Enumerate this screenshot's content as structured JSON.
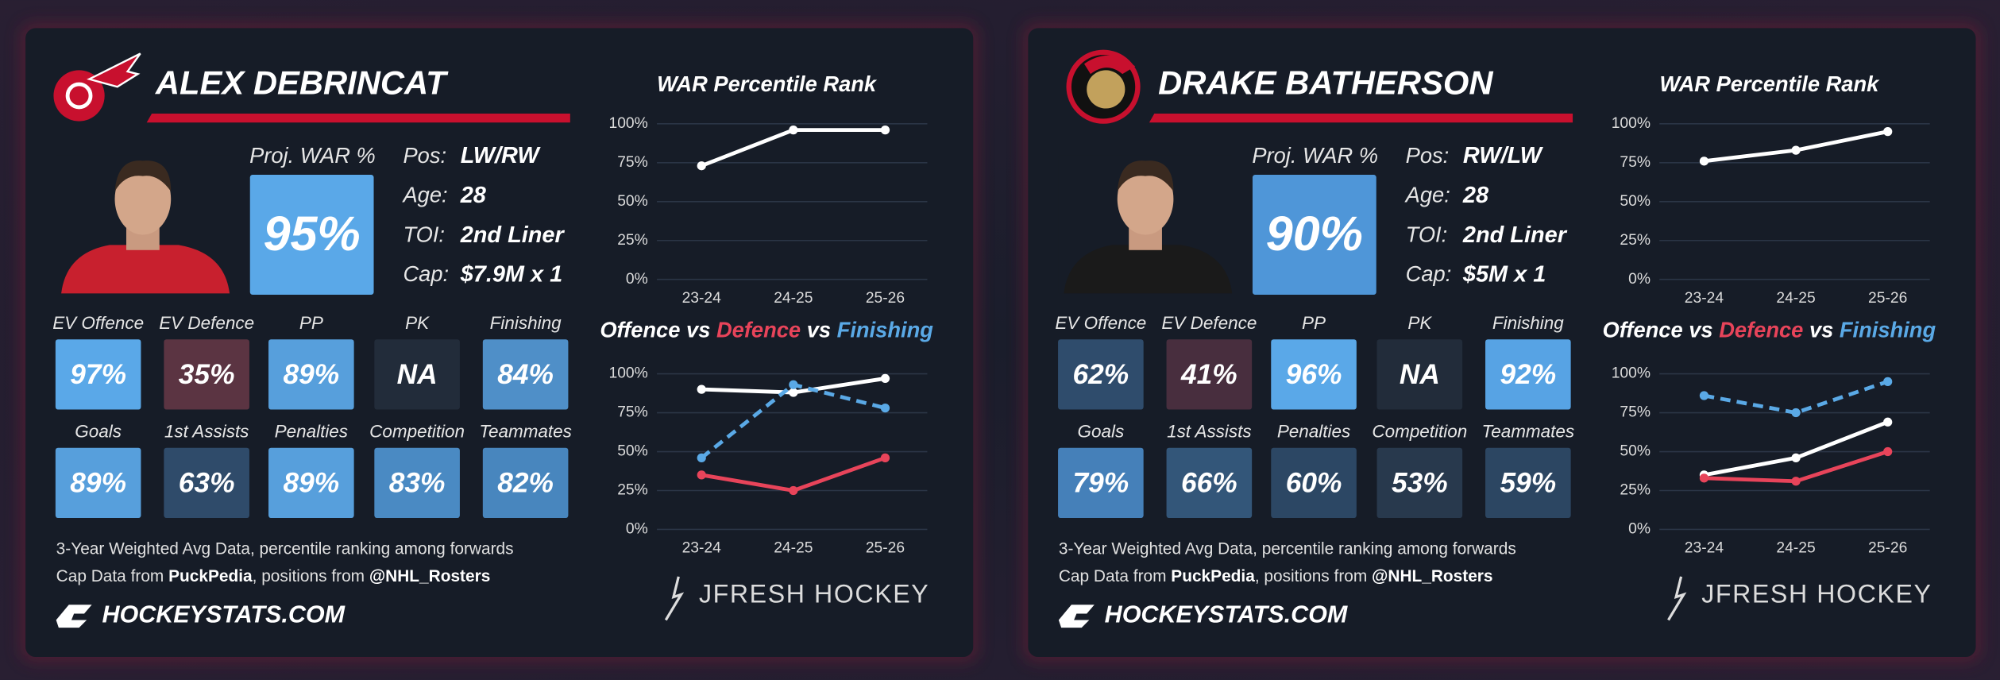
{
  "cards": [
    {
      "name": "ALEX DEBRINCAT",
      "proj_war_label": "Proj. WAR %",
      "proj_war": "95%",
      "proj_war_color": "#5aa8e8",
      "info": [
        {
          "label": "Pos:",
          "value": "LW/RW"
        },
        {
          "label": "Age:",
          "value": 28
        },
        {
          "label": "TOI:",
          "value": "2nd Liner"
        },
        {
          "label": "Cap:",
          "value": "$7.9M x 1"
        }
      ],
      "tiles": [
        {
          "label": "EV Offence",
          "value": "97%",
          "color": "#5aa8e8"
        },
        {
          "label": "EV Defence",
          "value": "35%",
          "color": "#5b3442"
        },
        {
          "label": "PP",
          "value": "89%",
          "color": "#579fdc"
        },
        {
          "label": "PK",
          "value": "NA",
          "color": "#222c3a"
        },
        {
          "label": "Finishing",
          "value": "84%",
          "color": "#4f8fc8"
        },
        {
          "label": "Goals",
          "value": "89%",
          "color": "#579fdc"
        },
        {
          "label": "1st Assists",
          "value": "63%",
          "color": "#2f4b6a"
        },
        {
          "label": "Penalties",
          "value": "89%",
          "color": "#579fdc"
        },
        {
          "label": "Competition",
          "value": "83%",
          "color": "#4a8ac3"
        },
        {
          "label": "Teammates",
          "value": "82%",
          "color": "#4886be"
        }
      ],
      "footnote": "3-Year Weighted Avg Data, percentile ranking among forwards",
      "source_parts": [
        "Cap Data from ",
        "PuckPedia",
        ", positions from ",
        "@NHL_Rosters"
      ],
      "site": "HOCKEYSTATS.COM",
      "brand": "JFRESH HOCKEY"
    },
    {
      "name": "DRAKE BATHERSON",
      "proj_war_label": "Proj. WAR %",
      "proj_war": "90%",
      "proj_war_color": "#4f96d8",
      "info": [
        {
          "label": "Pos:",
          "value": "RW/LW"
        },
        {
          "label": "Age:",
          "value": 28
        },
        {
          "label": "TOI:",
          "value": "2nd Liner"
        },
        {
          "label": "Cap:",
          "value": "$5M x 1"
        }
      ],
      "tiles": [
        {
          "label": "EV Offence",
          "value": "62%",
          "color": "#2f4c6c"
        },
        {
          "label": "EV Defence",
          "value": "41%",
          "color": "#482e3e"
        },
        {
          "label": "PP",
          "value": "96%",
          "color": "#5aa8e8"
        },
        {
          "label": "PK",
          "value": "NA",
          "color": "#222c3a"
        },
        {
          "label": "Finishing",
          "value": "92%",
          "color": "#57a3e4"
        },
        {
          "label": "Goals",
          "value": "79%",
          "color": "#4580b9"
        },
        {
          "label": "1st Assists",
          "value": "66%",
          "color": "#335679"
        },
        {
          "label": "Penalties",
          "value": "60%",
          "color": "#2c4764"
        },
        {
          "label": "Competition",
          "value": "53%",
          "color": "#28394d"
        },
        {
          "label": "Teammates",
          "value": "59%",
          "color": "#2c4662"
        }
      ],
      "footnote": "3-Year Weighted Avg Data, percentile ranking among forwards",
      "source_parts": [
        "Cap Data from ",
        "PuckPedia",
        ", positions from ",
        "@NHL_Rosters"
      ],
      "site": "HOCKEYSTATS.COM",
      "brand": "JFRESH HOCKEY"
    }
  ],
  "chart_data": [
    {
      "type": "line",
      "title": "WAR Percentile Rank",
      "categories": [
        "23-24",
        "24-25",
        "25-26"
      ],
      "series": [
        {
          "color": "#ffffff",
          "values": [
            73,
            96,
            96
          ]
        }
      ],
      "ylim": [
        0,
        100
      ],
      "yticks": [
        {
          "value": 0,
          "label": "0%"
        },
        {
          "value": 25,
          "label": "25%"
        },
        {
          "value": 50,
          "label": "50%"
        },
        {
          "value": 75,
          "label": "75%"
        },
        {
          "value": 100,
          "label": "100%"
        }
      ],
      "grid": true
    },
    {
      "type": "line",
      "title_separator": "vs",
      "categories": [
        "23-24",
        "24-25",
        "25-26"
      ],
      "series": [
        {
          "name": "Offence",
          "color": "#ffffff",
          "values": [
            90,
            88,
            97
          ]
        },
        {
          "name": "Defence",
          "color": "#e8445a",
          "values": [
            35,
            25,
            46
          ]
        },
        {
          "name": "Finishing",
          "color": "#5aa9e6",
          "dashed": true,
          "values": [
            46,
            93,
            78
          ]
        }
      ],
      "ylim": [
        0,
        100
      ],
      "yticks": [
        {
          "value": 0,
          "label": "0%"
        },
        {
          "value": 25,
          "label": "25%"
        },
        {
          "value": 50,
          "label": "50%"
        },
        {
          "value": 75,
          "label": "75%"
        },
        {
          "value": 100,
          "label": "100%"
        }
      ],
      "grid": true
    },
    {
      "type": "line",
      "title": "WAR Percentile Rank",
      "categories": [
        "23-24",
        "24-25",
        "25-26"
      ],
      "series": [
        {
          "color": "#ffffff",
          "values": [
            76,
            83,
            95
          ]
        }
      ],
      "ylim": [
        0,
        100
      ],
      "yticks": [
        {
          "value": 0,
          "label": "0%"
        },
        {
          "value": 25,
          "label": "25%"
        },
        {
          "value": 50,
          "label": "50%"
        },
        {
          "value": 75,
          "label": "75%"
        },
        {
          "value": 100,
          "label": "100%"
        }
      ],
      "grid": true
    },
    {
      "type": "line",
      "title_separator": "vs",
      "categories": [
        "23-24",
        "24-25",
        "25-26"
      ],
      "series": [
        {
          "name": "Offence",
          "color": "#ffffff",
          "values": [
            35,
            46,
            69
          ]
        },
        {
          "name": "Defence",
          "color": "#e8445a",
          "values": [
            33,
            31,
            50
          ]
        },
        {
          "name": "Finishing",
          "color": "#5aa9e6",
          "dashed": true,
          "values": [
            86,
            75,
            95
          ]
        }
      ],
      "ylim": [
        0,
        100
      ],
      "yticks": [
        {
          "value": 0,
          "label": "0%"
        },
        {
          "value": 25,
          "label": "25%"
        },
        {
          "value": 50,
          "label": "50%"
        },
        {
          "value": 75,
          "label": "75%"
        },
        {
          "value": 100,
          "label": "100%"
        }
      ],
      "grid": true
    }
  ]
}
